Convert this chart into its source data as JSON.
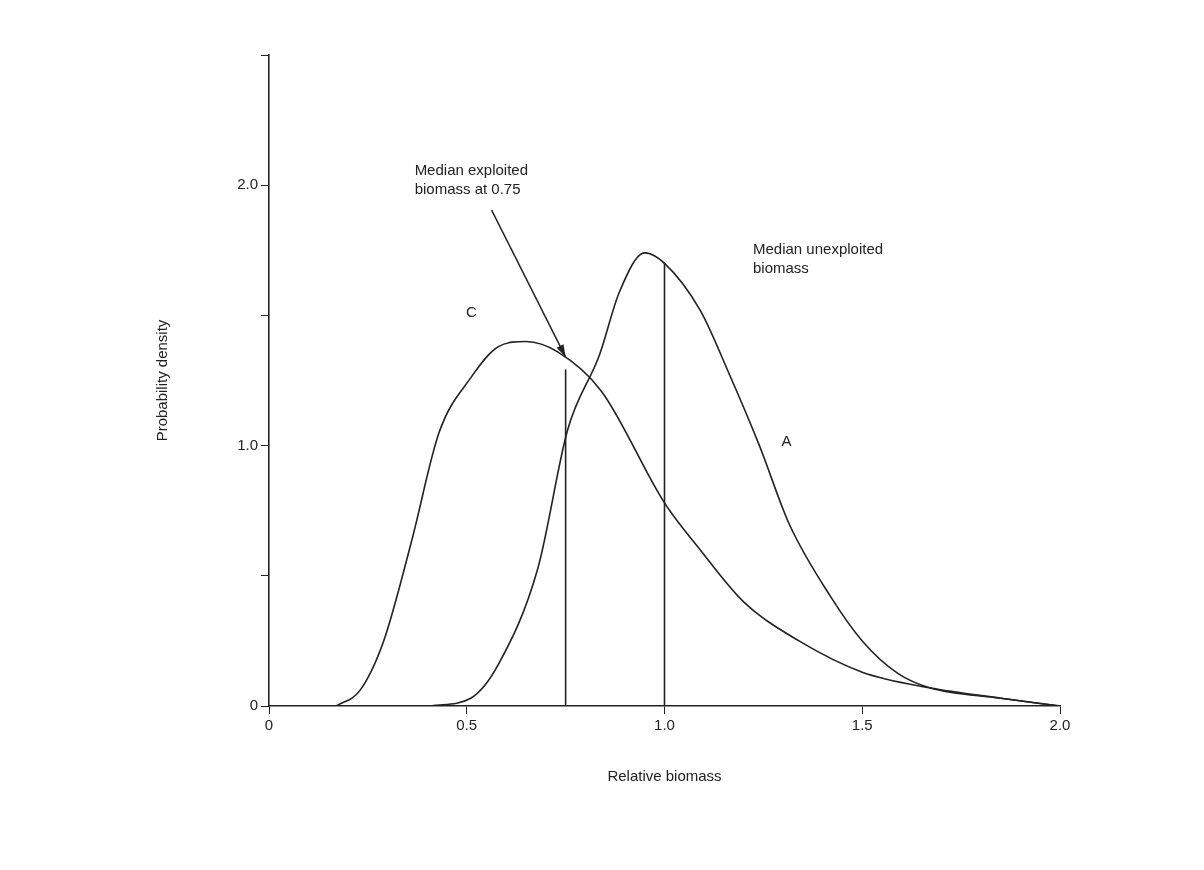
{
  "chart_data": {
    "type": "line",
    "xlabel": "Relative biomass",
    "ylabel": "Probability density",
    "xlim": [
      0,
      2
    ],
    "xticks": [
      0,
      0.5,
      {
        "value": 1,
        "label": "1.0"
      },
      1.5,
      {
        "value": 2,
        "label": "2.0"
      }
    ],
    "ylim": [
      0,
      2.5
    ],
    "yticks": [
      0,
      {
        "value": 0.5,
        "label": null
      },
      {
        "value": 1,
        "label": "1.0"
      },
      {
        "value": 1.5,
        "label": null
      },
      {
        "value": 2,
        "label": "2.0"
      },
      {
        "value": 2.5,
        "label": null
      }
    ],
    "marker": "none",
    "legend": false,
    "series": [
      {
        "name": "C",
        "color": "#222222",
        "x": [
          0.17,
          0.23,
          0.29,
          0.36,
          0.43,
          0.51,
          0.58,
          0.65,
          0.73,
          0.84,
          1.0,
          1.09,
          1.2,
          1.34,
          1.5,
          1.67,
          1.85,
          2.0
        ],
        "values": [
          0,
          0.06,
          0.25,
          0.63,
          1.05,
          1.26,
          1.38,
          1.4,
          1.36,
          1.21,
          0.78,
          0.6,
          0.4,
          0.25,
          0.13,
          0.07,
          0.03,
          0
        ]
      },
      {
        "name": "A",
        "color": "#222222",
        "x": [
          0.41,
          0.51,
          0.58,
          0.68,
          0.755,
          0.836,
          0.886,
          0.95,
          1.0,
          1.09,
          1.165,
          1.24,
          1.315,
          1.42,
          1.5,
          1.59,
          1.67,
          1.85,
          2.0
        ],
        "values": [
          0,
          0.03,
          0.16,
          0.53,
          1.06,
          1.35,
          1.59,
          1.74,
          1.7,
          1.52,
          1.27,
          1.0,
          0.7,
          0.42,
          0.25,
          0.125,
          0.07,
          0.03,
          0
        ]
      },
      {
        "color": "#222222",
        "x": [
          0.75,
          0.75
        ],
        "values": [
          0,
          1.29
        ]
      },
      {
        "color": "#222222",
        "x": [
          1.0,
          1.0
        ],
        "values": [
          0,
          1.7
        ]
      }
    ],
    "annotations": [
      {
        "text": "Median exploited biomass at 0.75",
        "x": 0.75,
        "y": 1.34
      },
      "Median unexploited biomass"
    ]
  }
}
